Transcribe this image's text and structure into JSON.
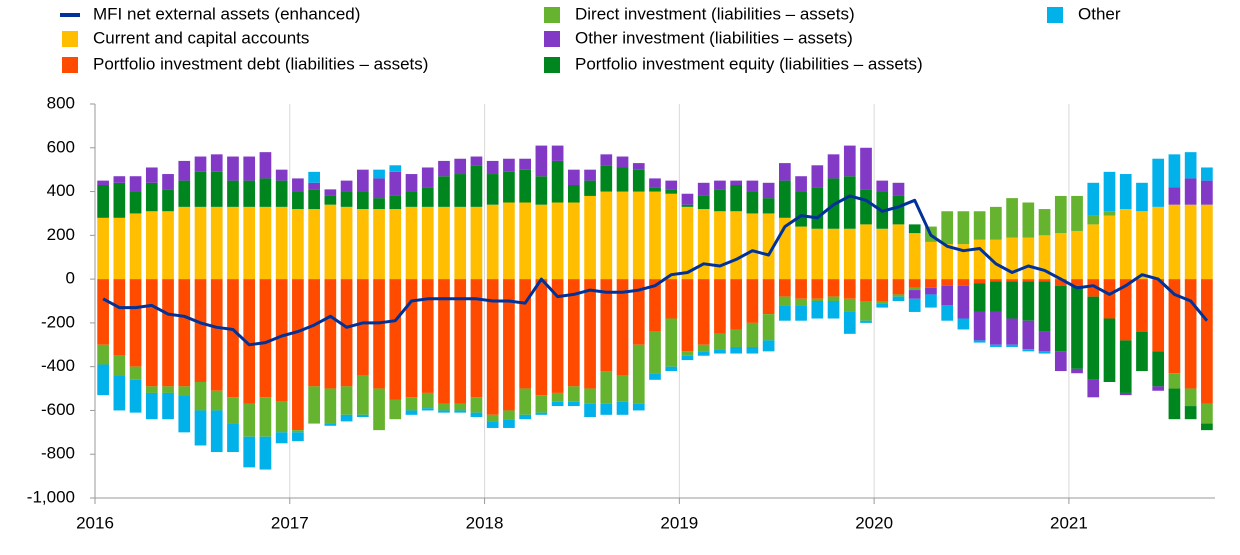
{
  "chart_data": {
    "type": "bar",
    "stacked": true,
    "categories": [
      "2016",
      null,
      null,
      null,
      null,
      null,
      null,
      null,
      null,
      null,
      null,
      null,
      "2017",
      null,
      null,
      null,
      null,
      null,
      null,
      null,
      null,
      null,
      null,
      null,
      "2018",
      null,
      null,
      null,
      null,
      null,
      null,
      null,
      null,
      null,
      null,
      null,
      "2019",
      null,
      null,
      null,
      null,
      null,
      null,
      null,
      null,
      null,
      null,
      null,
      "2020",
      null,
      null,
      null,
      null,
      null,
      null,
      null,
      null,
      null,
      null,
      null,
      "2021",
      null,
      null,
      null,
      null,
      null,
      null,
      null,
      null
    ],
    "ylim": [
      -1000,
      800
    ],
    "yticks": [
      {
        "value": -1000,
        "label": "-1,000"
      },
      -800,
      -600,
      -400,
      -200,
      0,
      200,
      400,
      600,
      800
    ],
    "series": [
      {
        "name": "MFI net external assets (enhanced)",
        "type": "line",
        "color": "#003299",
        "values": [
          -90,
          -130,
          -130,
          -120,
          -160,
          -170,
          -200,
          -220,
          -230,
          -300,
          -290,
          -260,
          -240,
          -210,
          -170,
          -220,
          -200,
          -200,
          -190,
          -100,
          -90,
          -90,
          -90,
          -90,
          -100,
          -100,
          -110,
          0,
          -80,
          -70,
          -50,
          -60,
          -60,
          -50,
          -30,
          20,
          30,
          70,
          60,
          90,
          130,
          110,
          240,
          290,
          280,
          340,
          380,
          360,
          310,
          330,
          360,
          200,
          150,
          130,
          140,
          70,
          30,
          60,
          40,
          0,
          -40,
          -30,
          -70,
          -30,
          20,
          0,
          -70,
          -100,
          -190
        ]
      },
      {
        "name": "Current and capital accounts",
        "color": "#ffbf00",
        "values": [
          280,
          280,
          300,
          310,
          310,
          330,
          330,
          330,
          330,
          330,
          330,
          330,
          320,
          320,
          340,
          330,
          320,
          320,
          320,
          330,
          330,
          330,
          330,
          330,
          340,
          350,
          350,
          340,
          350,
          350,
          380,
          400,
          400,
          400,
          400,
          390,
          330,
          320,
          310,
          310,
          300,
          300,
          280,
          240,
          230,
          230,
          230,
          250,
          230,
          250,
          210,
          170,
          160,
          160,
          180,
          180,
          190,
          190,
          200,
          210,
          220,
          250,
          290,
          320,
          310,
          330,
          340,
          340,
          340
        ]
      },
      {
        "name": "Portfolio investment debt (liabilities – assets)",
        "color": "#ff4b00",
        "values": [
          -300,
          -350,
          -400,
          -490,
          -490,
          -490,
          -470,
          -510,
          -540,
          -570,
          -540,
          -560,
          -690,
          -490,
          -500,
          -490,
          -440,
          -500,
          -550,
          -540,
          -520,
          -570,
          -570,
          -540,
          -620,
          -600,
          -500,
          -530,
          -520,
          -490,
          -500,
          -420,
          -440,
          -300,
          -240,
          -180,
          -330,
          -300,
          -250,
          -230,
          -200,
          -160,
          -80,
          -90,
          -90,
          -80,
          -90,
          -100,
          -100,
          -70,
          -40,
          -40,
          -30,
          -30,
          -20,
          -10,
          -10,
          -10,
          -10,
          -30,
          -30,
          -80,
          -180,
          -280,
          -240,
          -330,
          -430,
          -500,
          -570
        ]
      },
      {
        "name": "Direct investment (liabilities – assets)",
        "color": "#65b32e",
        "values": [
          -90,
          -90,
          -60,
          -30,
          -30,
          -40,
          -130,
          -90,
          -120,
          -150,
          -180,
          -140,
          -10,
          -170,
          -160,
          -130,
          -180,
          -190,
          -90,
          -60,
          -70,
          -30,
          -30,
          -70,
          -30,
          -40,
          -120,
          -80,
          -40,
          -70,
          -70,
          -150,
          -120,
          -270,
          -190,
          -220,
          -20,
          -30,
          -70,
          -80,
          -110,
          -120,
          -40,
          -30,
          -10,
          -20,
          -60,
          -90,
          -10,
          -10,
          -10,
          70,
          150,
          150,
          130,
          150,
          180,
          160,
          120,
          170,
          160,
          40,
          20,
          0,
          0,
          0,
          -70,
          -80,
          -90
        ]
      },
      {
        "name": "Portfolio investment equity (liabilities – assets)",
        "color": "#00861e",
        "values": [
          150,
          160,
          100,
          130,
          100,
          120,
          160,
          160,
          120,
          120,
          130,
          120,
          80,
          90,
          40,
          70,
          80,
          50,
          60,
          70,
          90,
          140,
          150,
          190,
          140,
          140,
          150,
          130,
          190,
          80,
          70,
          120,
          110,
          100,
          20,
          20,
          10,
          60,
          100,
          120,
          100,
          70,
          170,
          160,
          190,
          230,
          240,
          160,
          170,
          130,
          40,
          0,
          0,
          0,
          -130,
          -140,
          -170,
          -180,
          -230,
          -300,
          -380,
          -380,
          -290,
          -240,
          -180,
          -160,
          -140,
          -60,
          -30
        ]
      },
      {
        "name": "Other investment (liabilities – assets)",
        "color": "#8139c6",
        "values": [
          20,
          30,
          70,
          70,
          70,
          90,
          70,
          80,
          110,
          110,
          120,
          50,
          60,
          30,
          30,
          50,
          100,
          90,
          110,
          80,
          90,
          70,
          70,
          40,
          60,
          60,
          50,
          140,
          70,
          70,
          50,
          50,
          50,
          30,
          40,
          40,
          50,
          60,
          40,
          20,
          50,
          70,
          80,
          70,
          100,
          110,
          140,
          190,
          50,
          60,
          -40,
          -30,
          -90,
          -150,
          -130,
          -150,
          -120,
          -130,
          -90,
          -90,
          -20,
          -80,
          0,
          -10,
          0,
          -20,
          80,
          120,
          110
        ]
      },
      {
        "name": "Other",
        "color": "#00b1ea",
        "values": [
          -140,
          -160,
          -150,
          -120,
          -120,
          -170,
          -160,
          -190,
          -130,
          -140,
          -150,
          -50,
          -40,
          50,
          -10,
          -30,
          -10,
          40,
          30,
          -20,
          -10,
          -10,
          -10,
          -20,
          -30,
          -40,
          -20,
          -10,
          -20,
          -20,
          -60,
          -50,
          -60,
          -30,
          -30,
          -20,
          -20,
          -20,
          -20,
          -30,
          -30,
          -50,
          -70,
          -70,
          -80,
          -80,
          -100,
          -10,
          -20,
          -20,
          -60,
          -60,
          -70,
          -50,
          -10,
          -10,
          -10,
          -10,
          -10,
          0,
          0,
          150,
          180,
          160,
          130,
          220,
          150,
          120,
          60
        ]
      }
    ]
  }
}
